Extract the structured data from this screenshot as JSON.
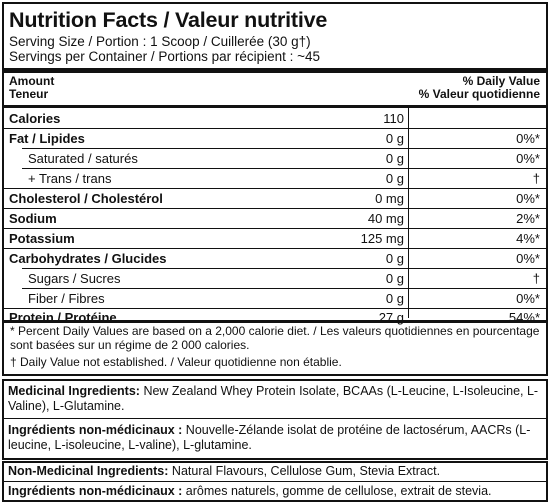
{
  "header": {
    "title": "Nutrition Facts / Valeur nutritive",
    "serving_size": "Serving Size / Portion : 1 Scoop / Cuillerée (30 g†)",
    "servings_per_container": "Servings per Container / Portions par récipient : ~45"
  },
  "columns": {
    "amount_en": "Amount",
    "amount_fr": "Teneur",
    "dv_en": "% Daily Value",
    "dv_fr": "% Valeur quotidienne"
  },
  "nutrients": [
    {
      "name": "Calories",
      "amount": "110",
      "dv": ""
    },
    {
      "name": "Fat / Lipides",
      "amount": "0 g",
      "dv": "0%*"
    },
    {
      "name": "Saturated / saturés",
      "amount": "0 g",
      "dv": "0%*"
    },
    {
      "name": "+ Trans / trans",
      "amount": "0 g",
      "dv": "†"
    },
    {
      "name": "Cholesterol / Cholestérol",
      "amount": "0 mg",
      "dv": "0%*"
    },
    {
      "name": "Sodium",
      "amount": "40 mg",
      "dv": "2%*"
    },
    {
      "name": "Potassium",
      "amount": "125 mg",
      "dv": "4%*"
    },
    {
      "name": "Carbohydrates / Glucides",
      "amount": "0 g",
      "dv": "0%*"
    },
    {
      "name": "Sugars / Sucres",
      "amount": "0 g",
      "dv": "†"
    },
    {
      "name": "Fiber / Fibres",
      "amount": "0 g",
      "dv": "0%*"
    },
    {
      "name": "Protein / Protéine",
      "amount": "27 g",
      "dv": "54%*"
    }
  ],
  "footnotes": {
    "percent_dv": "* Percent Daily Values are based on a 2,000 calorie diet. / Les valeurs quotidiennes en pourcentage sont basées sur un régime de 2 000 calories.",
    "not_established": "† Daily Value not established. / Valeur quotidienne non établie."
  },
  "ingredients": {
    "medicinal_label": "Medicinal Ingredients:",
    "medicinal_text": " New Zealand Whey Protein Isolate, BCAAs (L-Leucine, L-Isoleucine, L-Valine), L-Glutamine.",
    "medicinal_fr_label": "Ingrédients non-médicinaux :",
    "medicinal_fr_text": " Nouvelle-Zélande isolat de protéine de lactosérum, AACRs (L-leucine, L-isoleucine, L-valine), L-glutamine.",
    "nonmedicinal_label": "Non-Medicinal Ingredients:",
    "nonmedicinal_text": " Natural Flavours, Cellulose Gum, Stevia Extract.",
    "nonmedicinal_fr_label": "Ingrédients non-médicinaux :",
    "nonmedicinal_fr_text": " arômes naturels, gomme de cellulose, extrait de stevia."
  }
}
